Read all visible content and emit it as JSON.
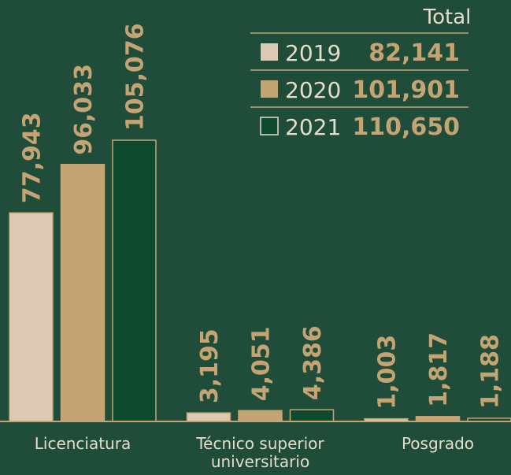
{
  "chart_data": {
    "type": "bar",
    "categories": [
      "Licenciatura",
      "Técnico superior universitario",
      "Posgrado"
    ],
    "total_header": "Total",
    "series": [
      {
        "name": "2019",
        "color": "#dccab4",
        "values": [
          77943,
          3195,
          1003
        ],
        "value_labels": [
          "77,943",
          "3,195",
          "1,003"
        ],
        "total": 82141,
        "total_label": "82,141"
      },
      {
        "name": "2020",
        "color": "#c4a473",
        "values": [
          96033,
          4051,
          1817
        ],
        "value_labels": [
          "96,033",
          "4,051",
          "1,817"
        ],
        "total": 101901,
        "total_label": "101,901"
      },
      {
        "name": "2021",
        "color": "#0e4a30",
        "values": [
          105076,
          4386,
          1188
        ],
        "value_labels": [
          "105,076",
          "4,386",
          "1,188"
        ],
        "total": 110650,
        "total_label": "110,650"
      }
    ]
  }
}
